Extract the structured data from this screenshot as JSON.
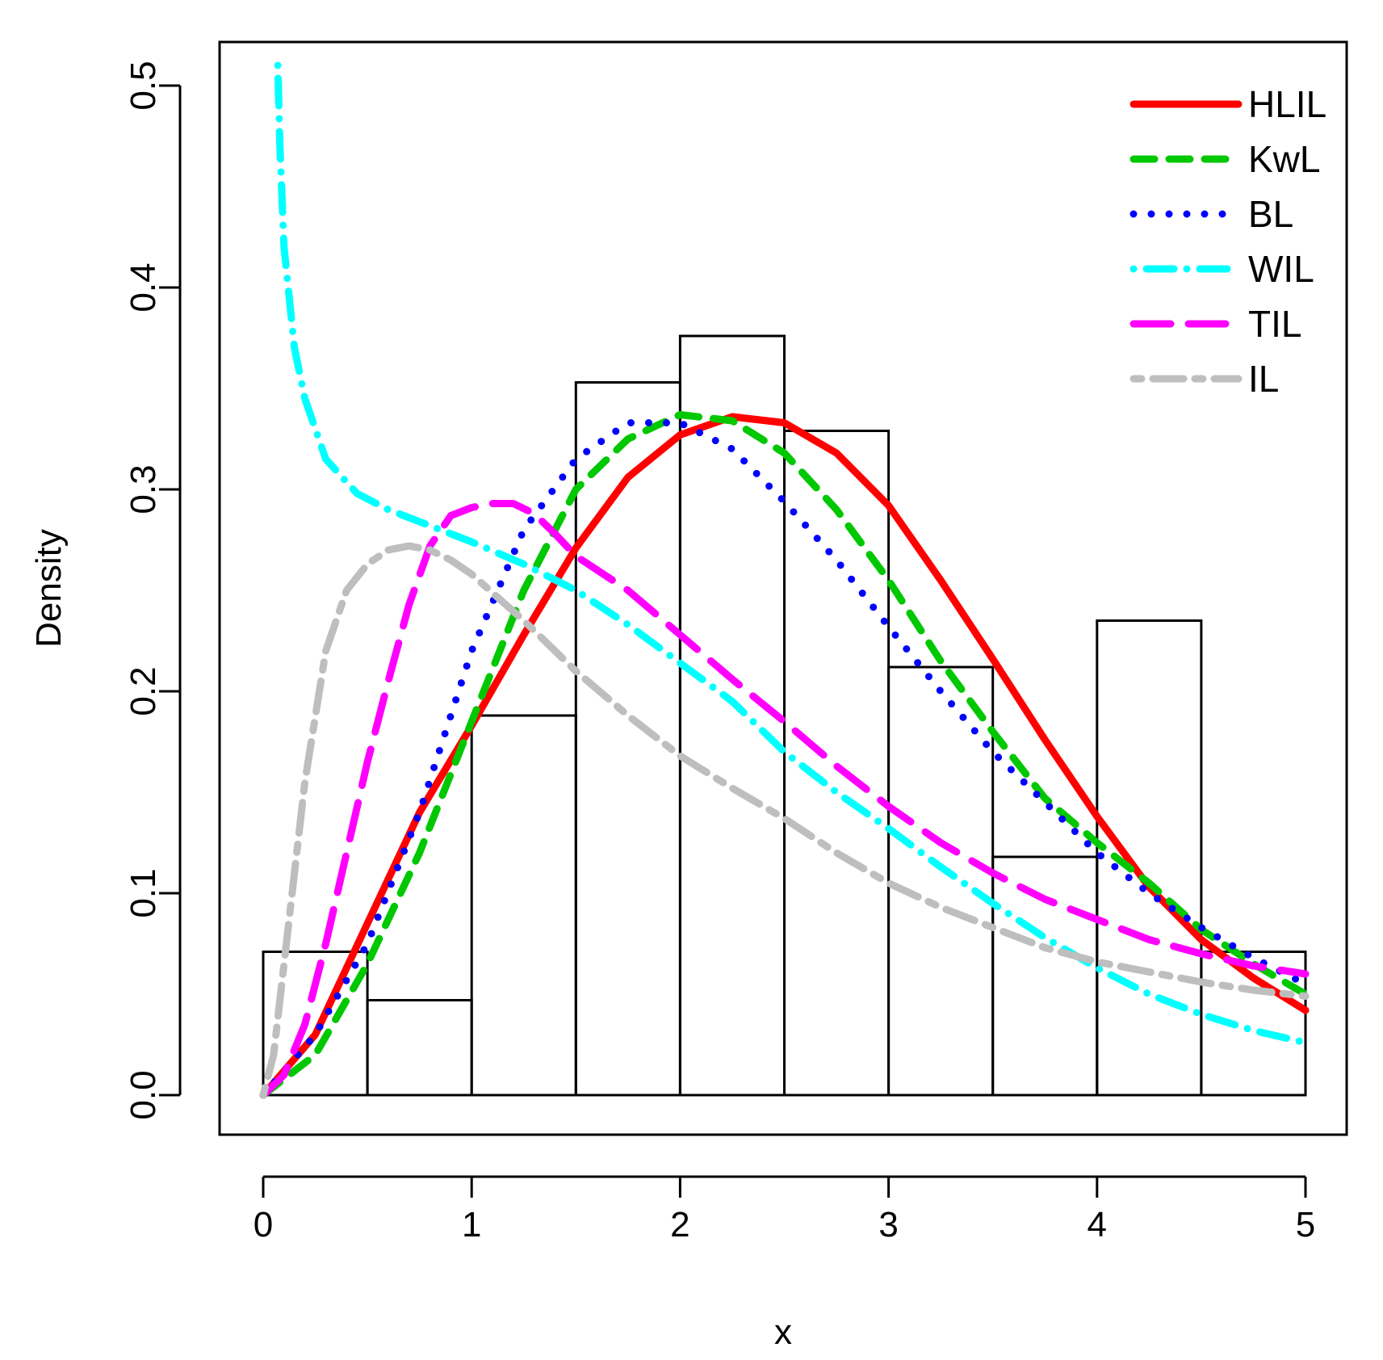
{
  "chart_data": {
    "type": "histogram",
    "title": "",
    "xlabel": "x",
    "ylabel": "Density",
    "xlim": [
      0,
      5
    ],
    "ylim": [
      0,
      0.5
    ],
    "x_ticks": [
      "0",
      "1",
      "2",
      "3",
      "4",
      "5"
    ],
    "y_ticks": [
      "0.0",
      "0.1",
      "0.2",
      "0.3",
      "0.4",
      "0.5"
    ],
    "histogram": {
      "breaks": [
        0,
        0.5,
        1,
        1.5,
        2,
        2.5,
        3,
        3.5,
        4,
        4.5,
        5
      ],
      "density": [
        0.071,
        0.047,
        0.188,
        0.353,
        0.376,
        0.329,
        0.212,
        0.118,
        0.235,
        0.071
      ]
    },
    "legend": {
      "position": "top-right"
    },
    "series": [
      {
        "name": "HLIL",
        "color": "#ff0000",
        "dash": "solid",
        "points": [
          [
            0,
            0
          ],
          [
            0.25,
            0.03
          ],
          [
            0.5,
            0.085
          ],
          [
            0.75,
            0.14
          ],
          [
            1,
            0.183
          ],
          [
            1.25,
            0.228
          ],
          [
            1.5,
            0.271
          ],
          [
            1.75,
            0.306
          ],
          [
            2,
            0.327
          ],
          [
            2.25,
            0.336
          ],
          [
            2.5,
            0.333
          ],
          [
            2.75,
            0.318
          ],
          [
            3,
            0.292
          ],
          [
            3.25,
            0.255
          ],
          [
            3.5,
            0.216
          ],
          [
            3.75,
            0.176
          ],
          [
            4,
            0.138
          ],
          [
            4.25,
            0.103
          ],
          [
            4.5,
            0.077
          ],
          [
            4.75,
            0.058
          ],
          [
            5,
            0.042
          ]
        ]
      },
      {
        "name": "KwL",
        "color": "#00c800",
        "dash": "dashed",
        "points": [
          [
            0,
            0
          ],
          [
            0.25,
            0.02
          ],
          [
            0.5,
            0.065
          ],
          [
            0.75,
            0.12
          ],
          [
            1,
            0.185
          ],
          [
            1.25,
            0.25
          ],
          [
            1.5,
            0.3
          ],
          [
            1.75,
            0.325
          ],
          [
            2,
            0.337
          ],
          [
            2.25,
            0.334
          ],
          [
            2.5,
            0.318
          ],
          [
            2.75,
            0.29
          ],
          [
            3,
            0.255
          ],
          [
            3.25,
            0.215
          ],
          [
            3.5,
            0.18
          ],
          [
            3.75,
            0.147
          ],
          [
            4,
            0.125
          ],
          [
            4.25,
            0.105
          ],
          [
            4.5,
            0.082
          ],
          [
            4.75,
            0.065
          ],
          [
            5,
            0.05
          ]
        ]
      },
      {
        "name": "BL",
        "color": "#0000ff",
        "dash": "dotted",
        "points": [
          [
            0,
            0
          ],
          [
            0.25,
            0.03
          ],
          [
            0.5,
            0.075
          ],
          [
            0.75,
            0.14
          ],
          [
            1,
            0.22
          ],
          [
            1.25,
            0.28
          ],
          [
            1.5,
            0.315
          ],
          [
            1.75,
            0.333
          ],
          [
            2,
            0.333
          ],
          [
            2.25,
            0.32
          ],
          [
            2.5,
            0.294
          ],
          [
            2.75,
            0.265
          ],
          [
            3,
            0.232
          ],
          [
            3.25,
            0.2
          ],
          [
            3.5,
            0.17
          ],
          [
            3.75,
            0.145
          ],
          [
            4,
            0.12
          ],
          [
            4.25,
            0.1
          ],
          [
            4.5,
            0.083
          ],
          [
            4.75,
            0.068
          ],
          [
            5,
            0.055
          ]
        ]
      },
      {
        "name": "WIL",
        "color": "#00ffff",
        "dash": "dotdash",
        "points": [
          [
            0.07,
            0.51
          ],
          [
            0.08,
            0.47
          ],
          [
            0.1,
            0.42
          ],
          [
            0.15,
            0.37
          ],
          [
            0.2,
            0.345
          ],
          [
            0.3,
            0.315
          ],
          [
            0.45,
            0.298
          ],
          [
            0.6,
            0.29
          ],
          [
            0.8,
            0.282
          ],
          [
            1,
            0.274
          ],
          [
            1.25,
            0.263
          ],
          [
            1.5,
            0.25
          ],
          [
            1.75,
            0.233
          ],
          [
            2,
            0.214
          ],
          [
            2.25,
            0.195
          ],
          [
            2.5,
            0.17
          ],
          [
            2.75,
            0.15
          ],
          [
            3,
            0.132
          ],
          [
            3.25,
            0.113
          ],
          [
            3.5,
            0.095
          ],
          [
            3.75,
            0.078
          ],
          [
            4,
            0.063
          ],
          [
            4.25,
            0.05
          ],
          [
            4.5,
            0.04
          ],
          [
            4.75,
            0.032
          ],
          [
            5,
            0.026
          ]
        ]
      },
      {
        "name": "TIL",
        "color": "#ff00ff",
        "dash": "longdash",
        "points": [
          [
            0,
            0
          ],
          [
            0.1,
            0.01
          ],
          [
            0.2,
            0.035
          ],
          [
            0.3,
            0.075
          ],
          [
            0.4,
            0.12
          ],
          [
            0.5,
            0.165
          ],
          [
            0.6,
            0.205
          ],
          [
            0.7,
            0.243
          ],
          [
            0.8,
            0.272
          ],
          [
            0.9,
            0.287
          ],
          [
            1,
            0.291
          ],
          [
            1.1,
            0.293
          ],
          [
            1.2,
            0.293
          ],
          [
            1.3,
            0.288
          ],
          [
            1.4,
            0.278
          ],
          [
            1.5,
            0.267
          ],
          [
            1.75,
            0.25
          ],
          [
            2,
            0.228
          ],
          [
            2.25,
            0.206
          ],
          [
            2.5,
            0.185
          ],
          [
            2.75,
            0.163
          ],
          [
            3,
            0.143
          ],
          [
            3.25,
            0.125
          ],
          [
            3.5,
            0.11
          ],
          [
            3.75,
            0.097
          ],
          [
            4,
            0.087
          ],
          [
            4.25,
            0.077
          ],
          [
            4.5,
            0.07
          ],
          [
            4.75,
            0.064
          ],
          [
            5,
            0.06
          ]
        ]
      },
      {
        "name": "IL",
        "color": "#bebebe",
        "dash": "twodash",
        "points": [
          [
            0,
            0
          ],
          [
            0.05,
            0.02
          ],
          [
            0.1,
            0.065
          ],
          [
            0.15,
            0.11
          ],
          [
            0.2,
            0.155
          ],
          [
            0.3,
            0.22
          ],
          [
            0.4,
            0.25
          ],
          [
            0.5,
            0.263
          ],
          [
            0.6,
            0.27
          ],
          [
            0.7,
            0.272
          ],
          [
            0.8,
            0.27
          ],
          [
            0.9,
            0.265
          ],
          [
            1,
            0.258
          ],
          [
            1.25,
            0.235
          ],
          [
            1.5,
            0.21
          ],
          [
            1.75,
            0.188
          ],
          [
            2,
            0.168
          ],
          [
            2.25,
            0.152
          ],
          [
            2.5,
            0.137
          ],
          [
            2.75,
            0.12
          ],
          [
            3,
            0.105
          ],
          [
            3.25,
            0.093
          ],
          [
            3.5,
            0.083
          ],
          [
            3.75,
            0.073
          ],
          [
            4,
            0.066
          ],
          [
            4.25,
            0.061
          ],
          [
            4.5,
            0.056
          ],
          [
            4.75,
            0.052
          ],
          [
            5,
            0.049
          ]
        ]
      }
    ]
  }
}
